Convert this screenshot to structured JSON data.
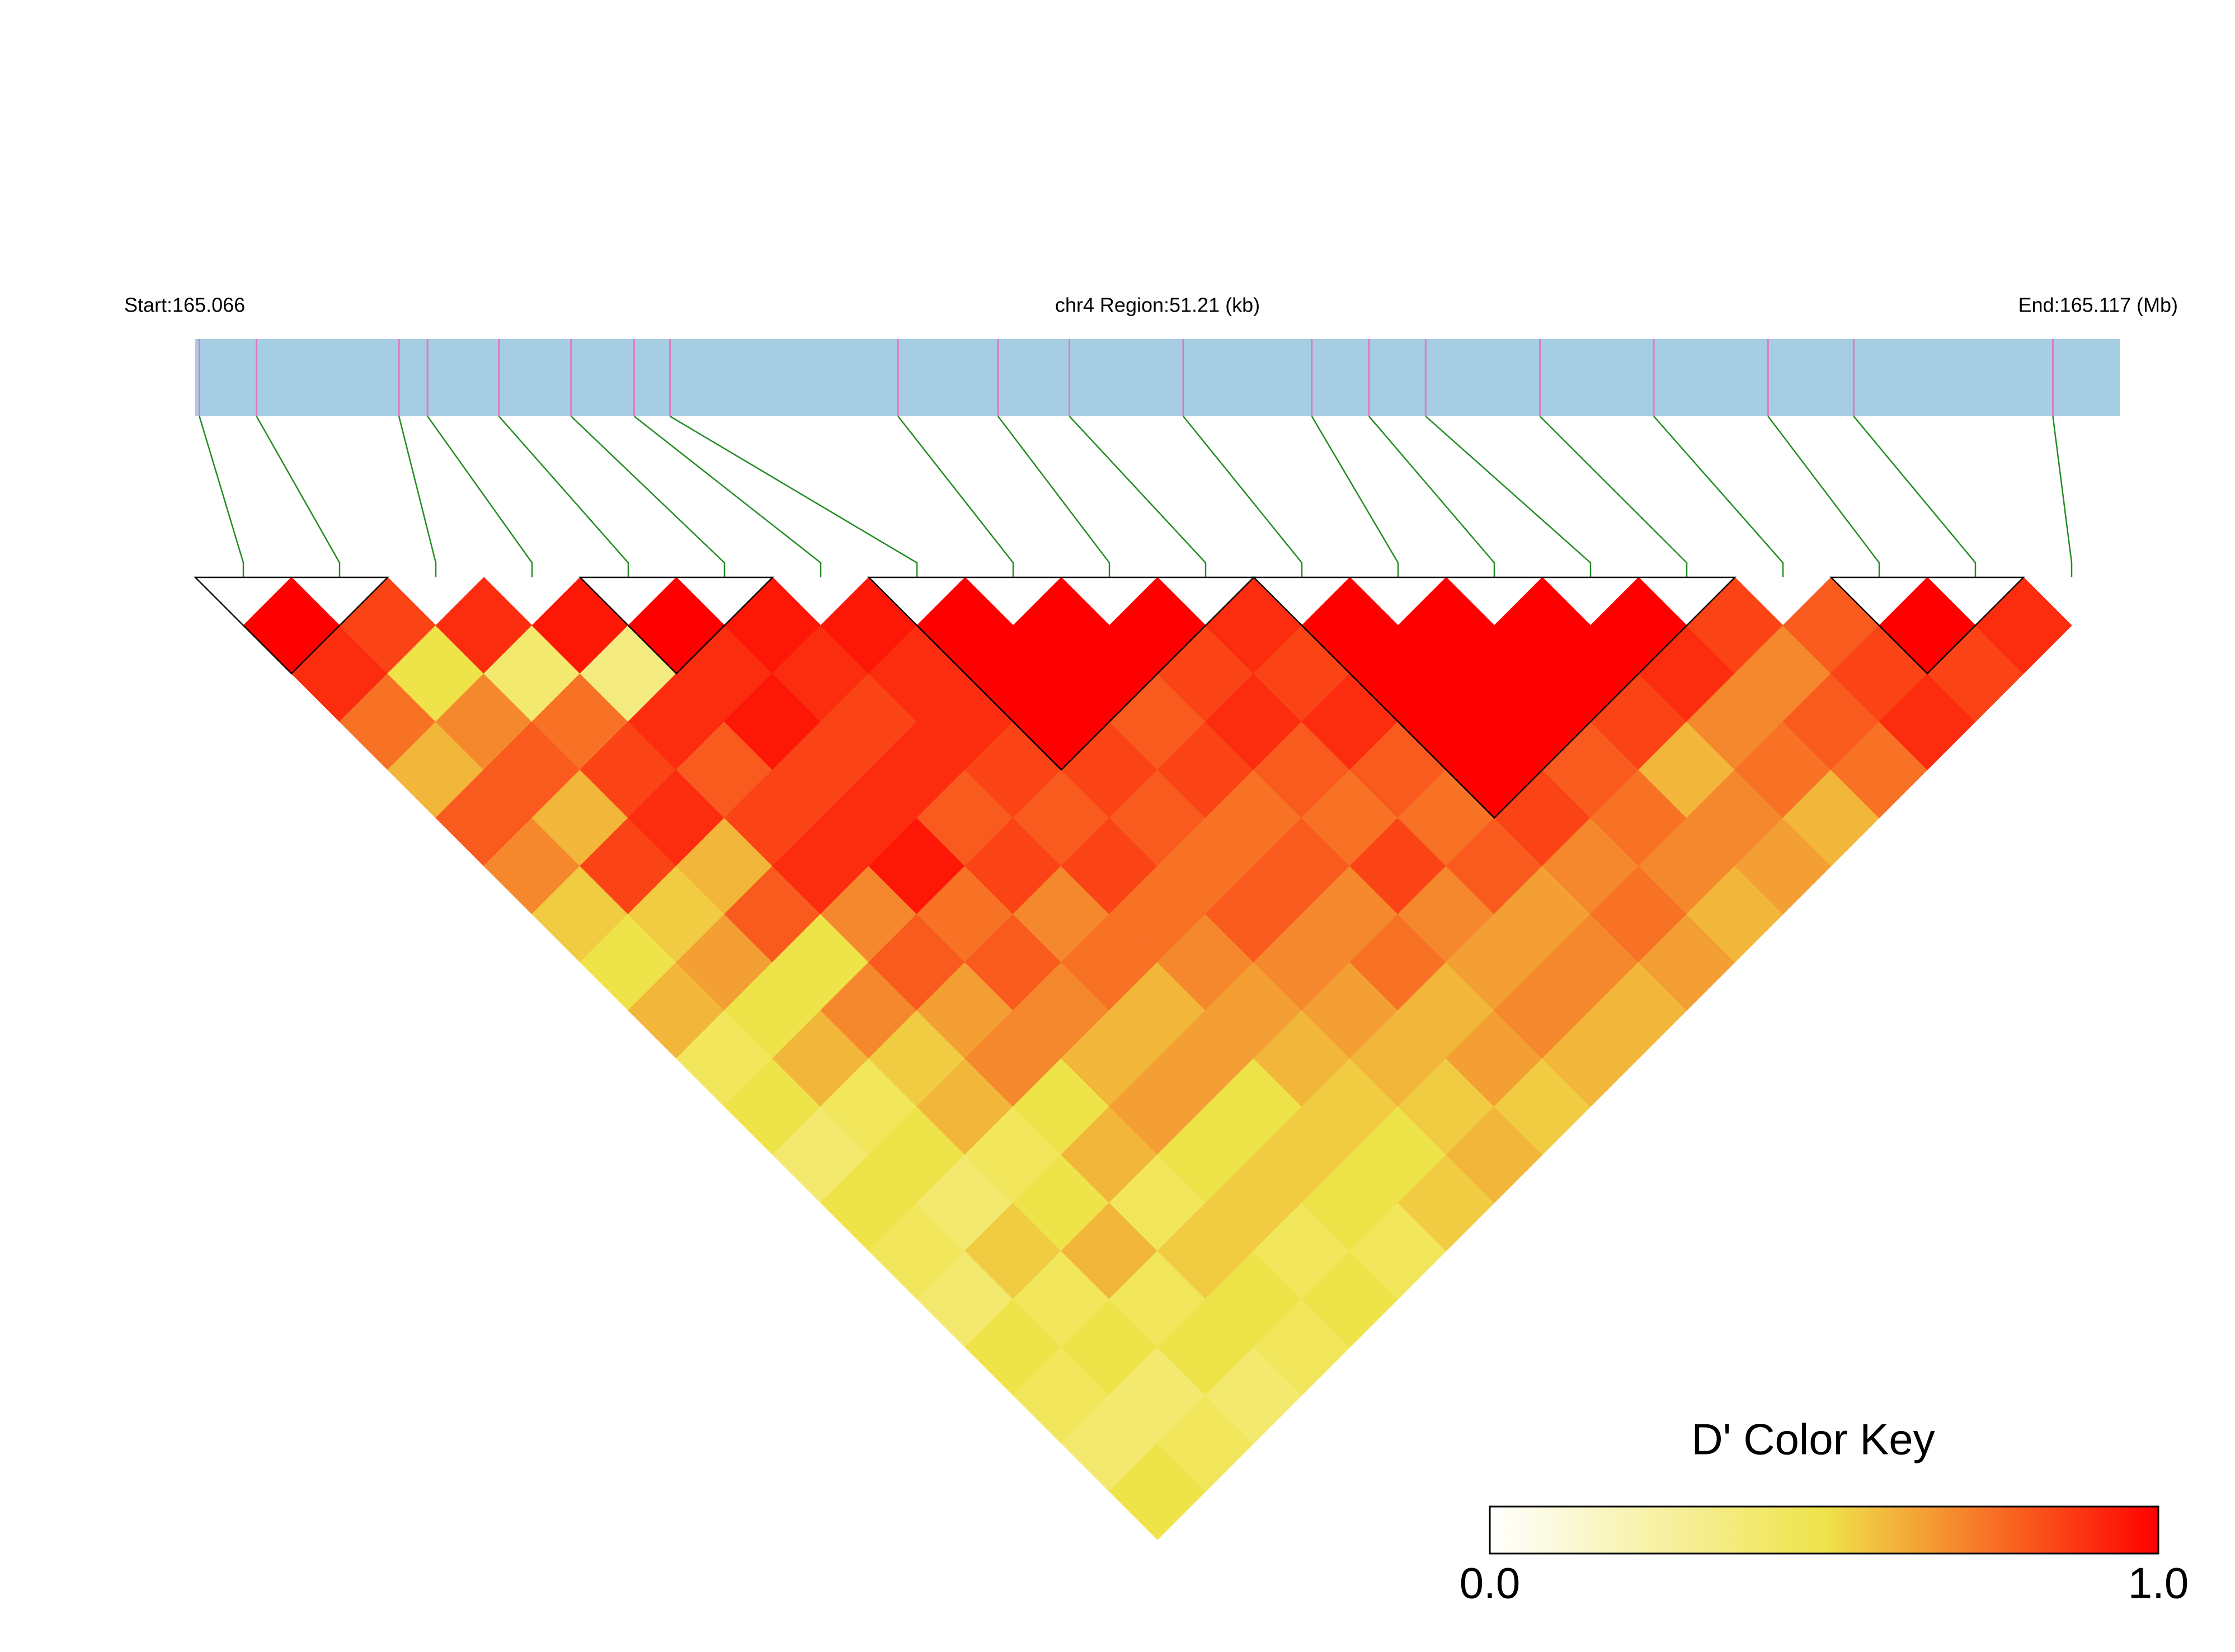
{
  "chart_data": {
    "type": "ld_heatmap",
    "start_label": "Start:165.066",
    "region_label": "chr4 Region:51.21 (kb)",
    "end_label": "End:165.117 (Mb)",
    "title": "D' Color Key",
    "xlim": [
      0,
      51.21
    ],
    "snp_positions": [
      0.11,
      1.63,
      5.42,
      6.18,
      8.08,
      10.0,
      11.68,
      12.63,
      18.7,
      21.36,
      23.26,
      26.29,
      29.71,
      31.23,
      32.74,
      35.78,
      38.81,
      41.85,
      44.13,
      49.43
    ],
    "values": [
      [
        1,
        0.9,
        0.75,
        0.6,
        0.8,
        0.7,
        0.55,
        0.5,
        0.6,
        0.45,
        0.5,
        0.4,
        0.5,
        0.45,
        0.4,
        0.5,
        0.45,
        0.4,
        0.5
      ],
      [
        0.85,
        0.5,
        0.7,
        0.8,
        0.6,
        0.85,
        0.55,
        0.65,
        0.5,
        0.6,
        0.45,
        0.5,
        0.4,
        0.55,
        0.45,
        0.5,
        0.4,
        0.45
      ],
      [
        0.9,
        0.4,
        0.75,
        0.85,
        0.9,
        0.6,
        0.8,
        0.5,
        0.7,
        0.55,
        0.6,
        0.45,
        0.5,
        0.6,
        0.45,
        0.5,
        0.4
      ],
      [
        0.95,
        0.35,
        0.9,
        0.8,
        0.85,
        0.9,
        0.7,
        0.8,
        0.65,
        0.7,
        0.5,
        0.6,
        0.45,
        0.55,
        0.5,
        0.45
      ],
      [
        1,
        0.9,
        0.95,
        0.85,
        0.9,
        0.95,
        0.75,
        0.8,
        0.7,
        0.6,
        0.65,
        0.5,
        0.55,
        0.45,
        0.5
      ],
      [
        0.95,
        0.9,
        0.85,
        0.9,
        0.8,
        0.85,
        0.7,
        0.75,
        0.6,
        0.65,
        0.5,
        0.55,
        0.5,
        0.45
      ],
      [
        0.95,
        0.9,
        0.9,
        0.85,
        0.8,
        0.85,
        0.75,
        0.7,
        0.65,
        0.6,
        0.55,
        0.5,
        0.55
      ],
      [
        1,
        1,
        1,
        0.85,
        0.8,
        0.75,
        0.8,
        0.7,
        0.65,
        0.6,
        0.55,
        0.6
      ],
      [
        1,
        1,
        0.8,
        0.85,
        0.75,
        0.8,
        0.7,
        0.75,
        0.6,
        0.65,
        0.55
      ],
      [
        1,
        0.85,
        0.9,
        0.8,
        0.75,
        0.85,
        0.7,
        0.65,
        0.7,
        0.6
      ],
      [
        0.9,
        0.85,
        0.9,
        0.8,
        0.75,
        0.8,
        0.65,
        0.7,
        0.6
      ],
      [
        1,
        1,
        1,
        1,
        0.85,
        0.7,
        0.75,
        0.65
      ],
      [
        1,
        1,
        1,
        0.8,
        0.75,
        0.7,
        0.6
      ],
      [
        1,
        1,
        0.85,
        0.6,
        0.7,
        0.65
      ],
      [
        1,
        0.9,
        0.7,
        0.75,
        0.6
      ],
      [
        0.85,
        0.7,
        0.8,
        0.75
      ],
      [
        0.8,
        0.85,
        0.9
      ],
      [
        1,
        0.85
      ],
      [
        0.9
      ]
    ],
    "blocks": [
      [
        0,
        1
      ],
      [
        4,
        5
      ],
      [
        7,
        10
      ],
      [
        11,
        15
      ],
      [
        17,
        18
      ]
    ],
    "colors": [
      "#ffffff",
      "#efe34a",
      "#ff0000"
    ],
    "colorbar_ticks": [
      {
        "value": 0,
        "label": "0.0"
      },
      {
        "value": 1,
        "label": "1.0"
      }
    ],
    "bar_color": "#a6cee3",
    "snp_tick_color": "#e377c2",
    "connector_color": "#228b22"
  }
}
